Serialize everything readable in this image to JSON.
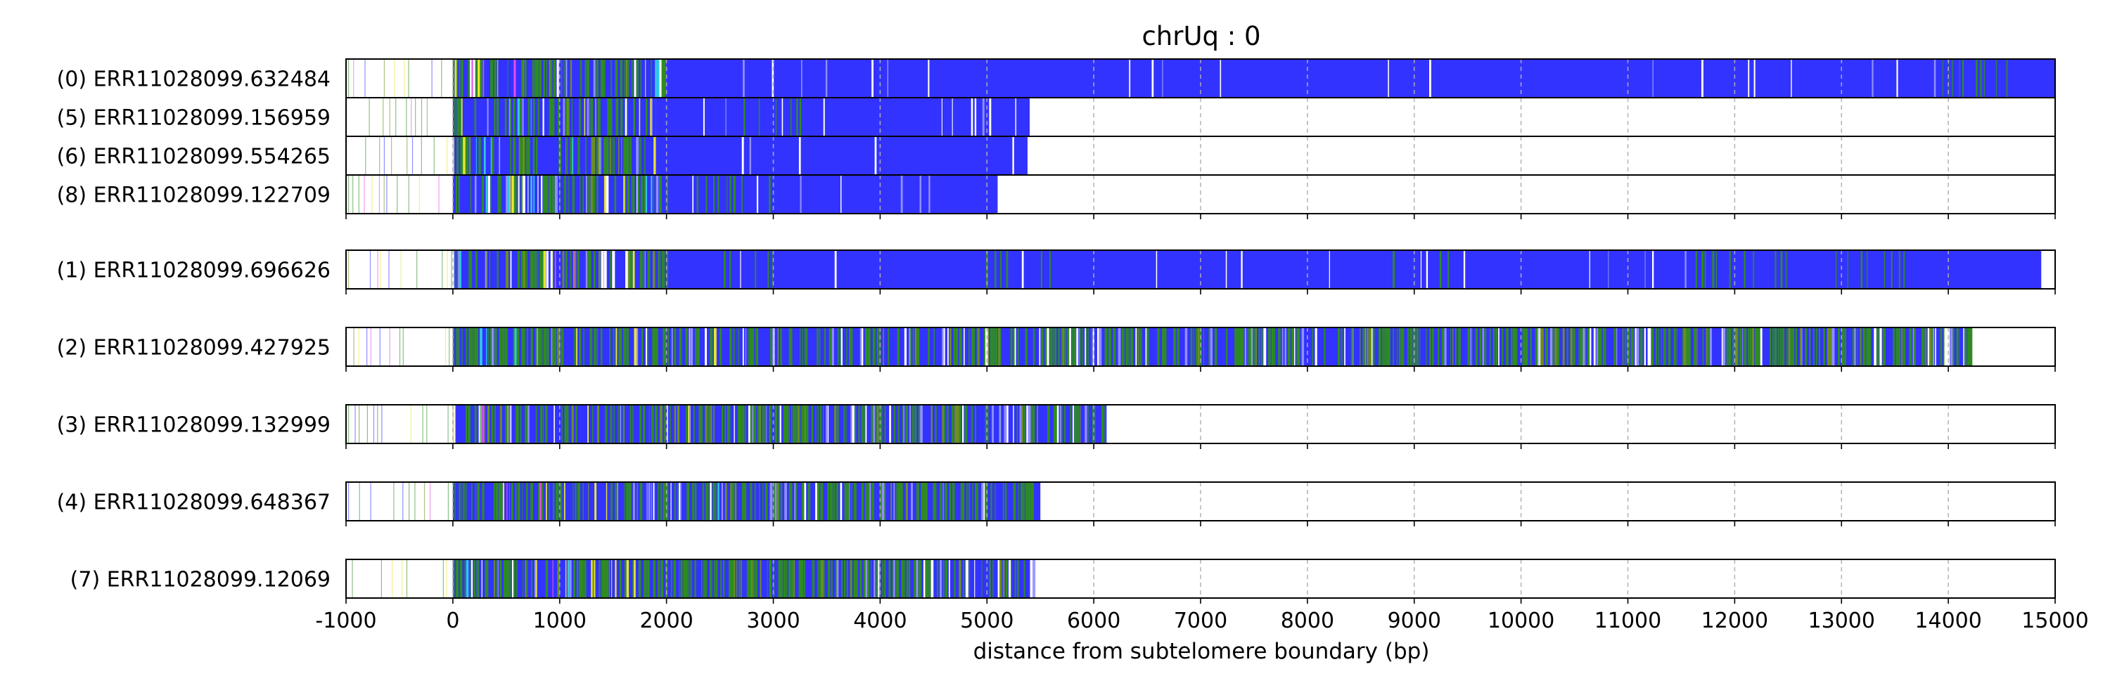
{
  "chart_data": {
    "type": "read-track",
    "title": "chrUq : 0",
    "xlabel": "distance from subtelomere boundary (bp)",
    "xlim": [
      -1000,
      15000
    ],
    "xticks": [
      -1000,
      0,
      1000,
      2000,
      3000,
      4000,
      5000,
      6000,
      7000,
      8000,
      9000,
      10000,
      11000,
      12000,
      13000,
      14000,
      15000
    ],
    "grid": "vertical dashed",
    "colors": {
      "tvr_blue": "#3333ff",
      "green": "#2e8b22",
      "olive": "#6b8e23",
      "yellow": "#e6e635",
      "cyan": "#33c6e6",
      "magenta": "#e64ce6",
      "white": "#ffffff",
      "frame": "#000000",
      "grid": "#b0b0b0"
    },
    "groups": [
      {
        "tracks": [
          {
            "label": "(0) ERR11028099.632484",
            "start": -1000,
            "end": 15000,
            "dense_start": 0,
            "solid_blue_from": 2000,
            "green_regions": [
              [
                0,
                2000,
                0.45
              ],
              [
                13800,
                14700,
                0.6
              ]
            ]
          },
          {
            "label": "(5) ERR11028099.156959",
            "start": -1000,
            "end": 5400,
            "dense_start": 0,
            "solid_blue_from": 1900,
            "green_regions": [
              [
                0,
                1900,
                0.45
              ],
              [
                2700,
                3400,
                0.55
              ]
            ]
          },
          {
            "label": "(6) ERR11028099.554265",
            "start": -1000,
            "end": 5380,
            "dense_start": 0,
            "solid_blue_from": 1900,
            "green_regions": [
              [
                0,
                1900,
                0.45
              ]
            ]
          },
          {
            "label": "(8) ERR11028099.122709",
            "start": -1000,
            "end": 5100,
            "dense_start": 0,
            "solid_blue_from": 2000,
            "green_regions": [
              [
                0,
                2000,
                0.45
              ],
              [
                2200,
                3000,
                0.55
              ]
            ]
          }
        ]
      },
      {
        "tracks": [
          {
            "label": "(1) ERR11028099.696626",
            "start": -1000,
            "end": 14870,
            "dense_start": 0,
            "solid_blue_from": 2000,
            "green_regions": [
              [
                0,
                2000,
                0.45
              ],
              [
                2500,
                3050,
                0.65
              ],
              [
                4950,
                5600,
                0.6
              ],
              [
                8700,
                9500,
                0.5
              ],
              [
                11600,
                12500,
                0.6
              ],
              [
                12900,
                13600,
                0.55
              ]
            ]
          }
        ]
      },
      {
        "tracks": [
          {
            "label": "(2) ERR11028099.427925",
            "start": -1000,
            "end": 14200,
            "dense_start": 0,
            "solid_blue_from": null,
            "green_regions": [
              [
                0,
                14200,
                0.5
              ],
              [
                5500,
                6500,
                0.7
              ],
              [
                10200,
                11500,
                0.7
              ],
              [
                12000,
                13200,
                0.7
              ]
            ]
          }
        ]
      },
      {
        "tracks": [
          {
            "label": "(3) ERR11028099.132999",
            "start": -1000,
            "end": 6120,
            "dense_start": 0,
            "solid_blue_from": null,
            "green_regions": [
              [
                0,
                6120,
                0.45
              ],
              [
                2500,
                3300,
                0.7
              ],
              [
                3600,
                4000,
                0.8
              ],
              [
                5300,
                6100,
                0.75
              ]
            ]
          }
        ]
      },
      {
        "tracks": [
          {
            "label": "(4) ERR11028099.648367",
            "start": -1000,
            "end": 5500,
            "dense_start": 0,
            "solid_blue_from": null,
            "green_regions": [
              [
                0,
                5500,
                0.5
              ],
              [
                2900,
                3800,
                0.7
              ]
            ]
          }
        ]
      },
      {
        "tracks": [
          {
            "label": "(7) ERR11028099.12069",
            "start": -1000,
            "end": 5450,
            "dense_start": 0,
            "solid_blue_from": null,
            "green_regions": [
              [
                0,
                5450,
                0.5
              ],
              [
                1900,
                4800,
                0.75
              ]
            ]
          }
        ]
      }
    ]
  }
}
